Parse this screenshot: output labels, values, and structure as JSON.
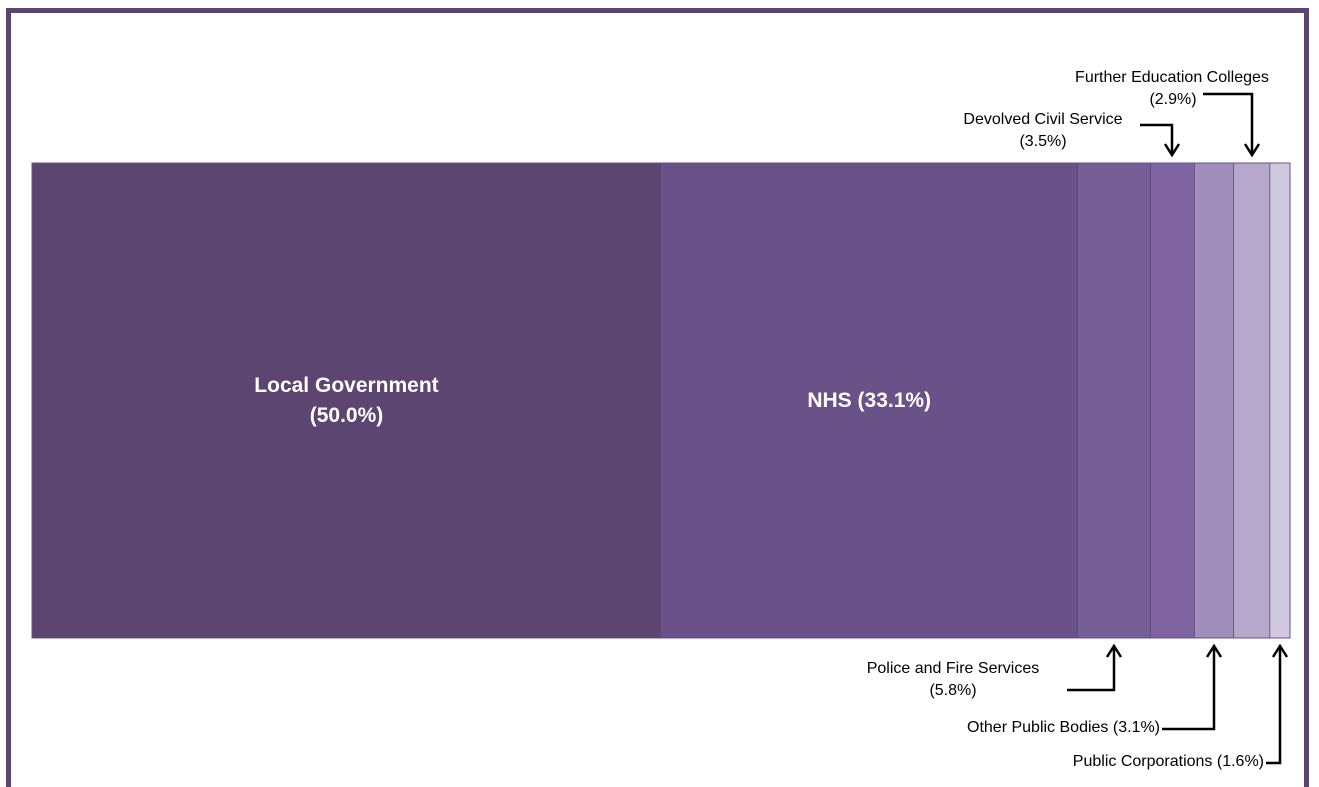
{
  "chart_data": {
    "type": "bar",
    "stacked": true,
    "orientation": "horizontal-100%",
    "total": 100,
    "segments": [
      {
        "name": "Local Government",
        "value": 50.0,
        "label_lines": [
          "Local Government",
          "(50.0%)"
        ],
        "color": "#5c4571",
        "label_style": "inside"
      },
      {
        "name": "NHS",
        "value": 33.1,
        "label_lines": [
          "NHS (33.1%)"
        ],
        "color": "#6a5188",
        "label_style": "inside"
      },
      {
        "name": "Police and Fire Services",
        "value": 5.8,
        "label_lines": [
          "Police and Fire Services",
          "(5.8%)"
        ],
        "color": "#765e96",
        "label_style": "callout-below"
      },
      {
        "name": "Devolved Civil Service",
        "value": 3.5,
        "label_lines": [
          "Devolved Civil Service",
          "(3.5%)"
        ],
        "color": "#8064a2",
        "label_style": "callout-above"
      },
      {
        "name": "Other Public Bodies",
        "value": 3.1,
        "label_lines": [
          "Other Public Bodies (3.1%)"
        ],
        "color": "#a08fba",
        "label_style": "callout-below"
      },
      {
        "name": "Further Education Colleges",
        "value": 2.9,
        "label_lines": [
          "Further Education Colleges",
          "(2.9%)"
        ],
        "color": "#b5a8ca",
        "label_style": "callout-above"
      },
      {
        "name": "Public Corporations",
        "value": 1.6,
        "label_lines": [
          "Public Corporations (1.6%)"
        ],
        "color": "#d0c8de",
        "label_style": "callout-below"
      }
    ]
  }
}
